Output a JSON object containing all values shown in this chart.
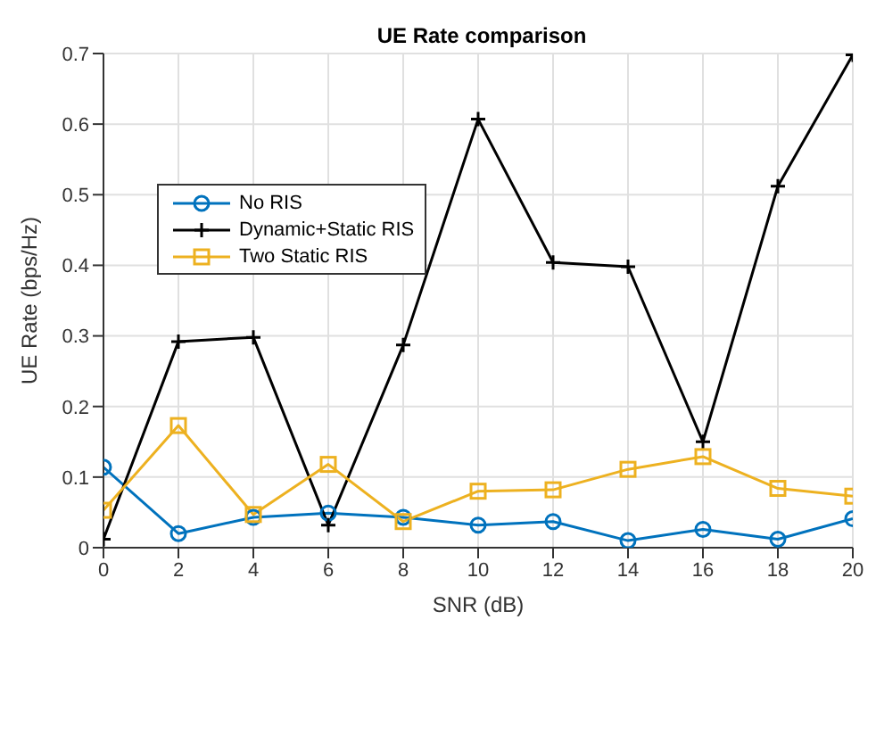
{
  "chart_data": {
    "type": "line",
    "title": "UE Rate comparison",
    "xlabel": "SNR (dB)",
    "ylabel": "UE Rate (bps/Hz)",
    "x": [
      0,
      2,
      4,
      6,
      8,
      10,
      12,
      14,
      16,
      18,
      20
    ],
    "series": [
      {
        "name": "No RIS",
        "color": "#0072bd",
        "marker": "circle",
        "values": [
          0.114,
          0.02,
          0.043,
          0.049,
          0.043,
          0.032,
          0.037,
          0.01,
          0.026,
          0.012,
          0.041
        ]
      },
      {
        "name": "Dynamic+Static RIS",
        "color": "#000000",
        "marker": "cross",
        "values": [
          0.012,
          0.292,
          0.298,
          0.032,
          0.287,
          0.607,
          0.404,
          0.398,
          0.15,
          0.512,
          0.698
        ]
      },
      {
        "name": "Two Static RIS",
        "color": "#edb120",
        "marker": "square",
        "values": [
          0.053,
          0.173,
          0.047,
          0.118,
          0.037,
          0.08,
          0.082,
          0.111,
          0.129,
          0.084,
          0.073
        ]
      }
    ],
    "xlim": [
      0,
      20
    ],
    "xticks": [
      0,
      2,
      4,
      6,
      8,
      10,
      12,
      14,
      16,
      18,
      20
    ],
    "ylim": [
      0,
      0.7
    ],
    "yticks": [
      0,
      0.1,
      0.2,
      0.3,
      0.4,
      0.5,
      0.6,
      0.7
    ],
    "grid": true,
    "legend": "top left",
    "line_style": "solid"
  }
}
